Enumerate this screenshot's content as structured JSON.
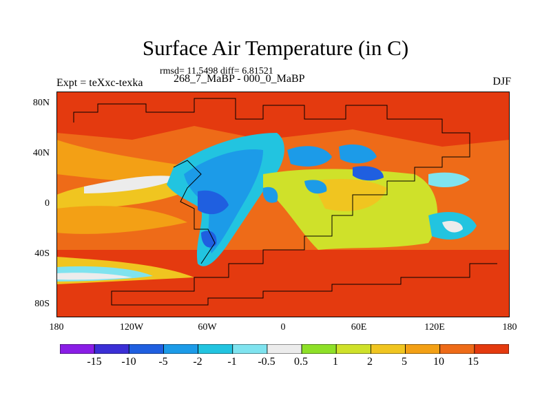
{
  "header": {
    "title": "Surface Air Temperature (in C)",
    "stats": "rmsd= 11.5498 diff= 6.81521",
    "experiment": "Expt = teXxc-texka",
    "period": "268_7_MaBP - 000_0_MaBP",
    "season": "DJF"
  },
  "map": {
    "lon_ticks": [
      "180",
      "120W",
      "60W",
      "0",
      "60E",
      "120E",
      "180"
    ],
    "lat_ticks": [
      "80N",
      "40N",
      "0",
      "40S",
      "80S"
    ]
  },
  "colorbar": {
    "labels": [
      "-15",
      "-10",
      "-5",
      "-2",
      "-1",
      "-0.5",
      "0.5",
      "1",
      "2",
      "5",
      "10",
      "15"
    ],
    "colors": [
      "#8a1de6",
      "#3b2fd6",
      "#1f5fe0",
      "#1c9be8",
      "#22c4e0",
      "#7fe3ef",
      "#ececec",
      "#8ee028",
      "#cfe12a",
      "#f0c520",
      "#f3a015",
      "#ee6b18",
      "#e43a0f"
    ]
  }
}
